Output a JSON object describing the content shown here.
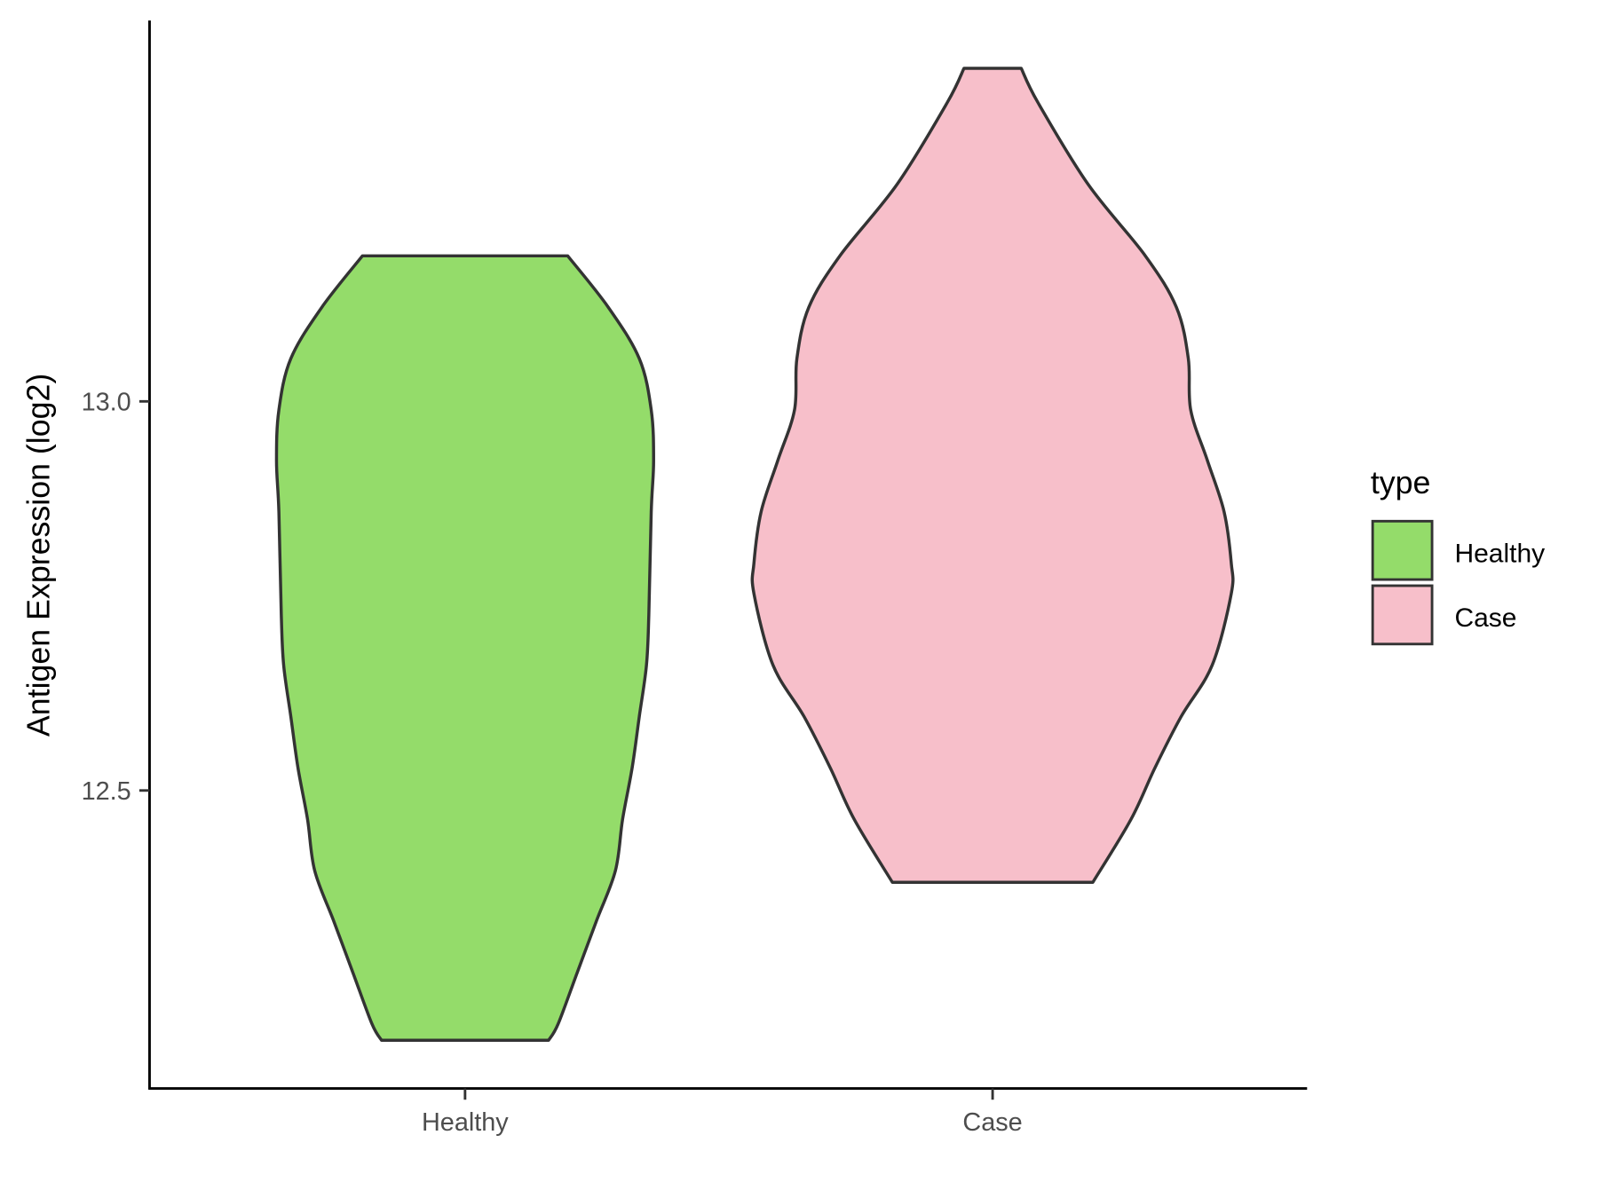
{
  "chart_data": {
    "type": "violin",
    "title": "",
    "xlabel": "",
    "ylabel": "Antigen Expression (log2)",
    "categories": [
      "Healthy",
      "Case"
    ],
    "yticks": [
      12.5,
      13.0
    ],
    "ytick_labels": [
      "12.5",
      "13.0"
    ],
    "grid": false,
    "legend": {
      "title": "type",
      "position": "right",
      "entries": [
        "Healthy",
        "Case"
      ]
    },
    "colors": {
      "Healthy": "#94DC6A",
      "Case": "#F7BFCA",
      "outline": "#333333"
    },
    "series": [
      {
        "name": "Healthy",
        "range": [
          12.179,
          13.187
        ],
        "profile_y": [
          13.187,
          13.121,
          13.055,
          12.989,
          12.924,
          12.858,
          12.726,
          12.661,
          12.595,
          12.529,
          12.463,
          12.397,
          12.332,
          12.266,
          12.2,
          12.179
        ],
        "profile_width": [
          0.43,
          0.6,
          0.73,
          0.78,
          0.79,
          0.78,
          0.77,
          0.76,
          0.73,
          0.7,
          0.66,
          0.63,
          0.55,
          0.47,
          0.39,
          0.35
        ]
      },
      {
        "name": "Case",
        "range": [
          12.382,
          13.428
        ],
        "profile_y": [
          13.428,
          13.384,
          13.279,
          13.187,
          13.121,
          13.055,
          12.989,
          12.924,
          12.858,
          12.792,
          12.753,
          12.661,
          12.595,
          12.529,
          12.463,
          12.382
        ],
        "profile_width": [
          0.12,
          0.19,
          0.4,
          0.64,
          0.77,
          0.82,
          0.83,
          0.9,
          0.97,
          1.0,
          1.0,
          0.92,
          0.79,
          0.68,
          0.58,
          0.42
        ]
      }
    ]
  }
}
